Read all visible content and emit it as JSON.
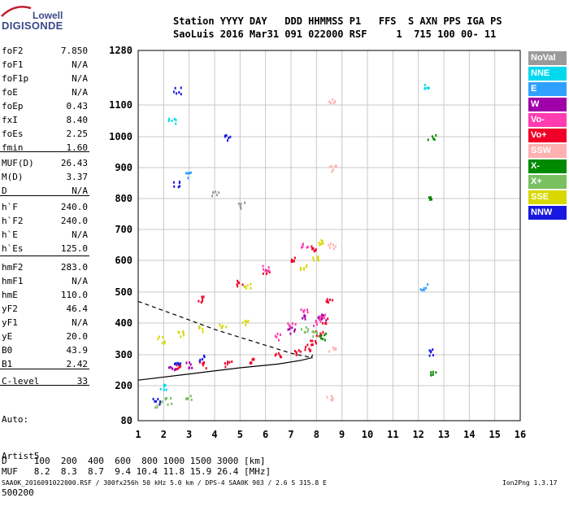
{
  "logo": {
    "line1": "Lowell",
    "line2": "DIGISONDE"
  },
  "header": {
    "line1": "Station YYYY DAY   DDD HHMMSS P1   FFS  S AXN PPS IGA PS",
    "line2": "SaoLuis 2016 Mar31 091 022000 RSF     1  715 100 00- 11"
  },
  "params": [
    {
      "label": "foF2",
      "value": "7.850"
    },
    {
      "label": "foF1",
      "value": "N/A"
    },
    {
      "label": "foF1p",
      "value": "N/A"
    },
    {
      "label": "foE",
      "value": "N/A"
    },
    {
      "label": "foEp",
      "value": "0.43"
    },
    {
      "label": "fxI",
      "value": "8.40"
    },
    {
      "label": "foEs",
      "value": "2.25"
    },
    {
      "label": "fmin",
      "value": "1.60"
    },
    {
      "label": "MUF(D)",
      "value": "26.43"
    },
    {
      "label": "M(D)",
      "value": "3.37"
    },
    {
      "label": "D",
      "value": "N/A"
    },
    {
      "label": "h`F",
      "value": "240.0"
    },
    {
      "label": "h`F2",
      "value": "240.0"
    },
    {
      "label": "h`E",
      "value": "N/A"
    },
    {
      "label": "h`Es",
      "value": "125.0"
    },
    {
      "label": "hmF2",
      "value": "283.0"
    },
    {
      "label": "hmF1",
      "value": "N/A"
    },
    {
      "label": "hmE",
      "value": "110.0"
    },
    {
      "label": "yF2",
      "value": "46.4"
    },
    {
      "label": "yF1",
      "value": "N/A"
    },
    {
      "label": "yE",
      "value": "20.0"
    },
    {
      "label": "B0",
      "value": "43.9"
    },
    {
      "label": "B1",
      "value": "2.42"
    },
    {
      "label": "C-level",
      "value": "33"
    }
  ],
  "auto": {
    "line1": "Auto:",
    "line2": "Artist5",
    "line3": "500200"
  },
  "legend": [
    {
      "label": "NoVal",
      "color": "#9a9a9a"
    },
    {
      "label": "NNE",
      "color": "#00d8ee"
    },
    {
      "label": "E",
      "color": "#30a0ff"
    },
    {
      "label": "W",
      "color": "#a000a8"
    },
    {
      "label": "Vo-",
      "color": "#ff3cb0"
    },
    {
      "label": "Vo+",
      "color": "#f00028"
    },
    {
      "label": "SSW",
      "color": "#ffb0b0"
    },
    {
      "label": "X-",
      "color": "#008a00"
    },
    {
      "label": "X+",
      "color": "#78c060"
    },
    {
      "label": "SSE",
      "color": "#d8d800"
    },
    {
      "label": "NNW",
      "color": "#1818e0"
    }
  ],
  "bottom": {
    "line1": "D     100  200  400  600  800 1000 1500 3000 [km]",
    "line2": "MUF   8.2  8.3  8.7  9.4 10.4 11.8 15.9 26.4 [MHz]"
  },
  "footer": {
    "left": "SAA0K_2016091022000.RSF / 300fx256h 50 kHz 5.0 km / DPS-4 SAA0K 903 / 2.6 S 315.8 E",
    "right": "Ion2Png 1.3.17"
  },
  "chart_data": {
    "type": "scatter",
    "title": "",
    "xlabel": "",
    "ylabel": "",
    "xlim": [
      1,
      16
    ],
    "ylim": [
      80,
      1280
    ],
    "x_ticks": [
      "1",
      "2",
      "3",
      "4",
      "5",
      "6",
      "7",
      "8",
      "9",
      "10",
      "11",
      "12",
      "13",
      "14",
      "15",
      "16"
    ],
    "y_ticks": [
      "80",
      "200",
      "300",
      "400",
      "500",
      "600",
      "700",
      "800",
      "900",
      "1000",
      "1100",
      "1280"
    ],
    "y_tick_values": [
      80,
      200,
      300,
      400,
      500,
      600,
      700,
      800,
      900,
      1000,
      1100,
      1280
    ],
    "grid": true,
    "series": [
      {
        "name": "Vo+",
        "color": "#f00028",
        "points": [
          [
            2.6,
            265
          ],
          [
            3.5,
            270
          ],
          [
            4.5,
            275
          ],
          [
            5.5,
            285
          ],
          [
            6.5,
            300
          ],
          [
            7.2,
            310
          ],
          [
            7.6,
            325
          ],
          [
            7.9,
            345
          ],
          [
            8.1,
            370
          ],
          [
            8.3,
            410
          ],
          [
            8.5,
            470
          ],
          [
            3.5,
            480
          ],
          [
            5.0,
            530
          ],
          [
            6.0,
            570
          ],
          [
            7.0,
            610
          ],
          [
            7.8,
            640
          ]
        ]
      },
      {
        "name": "Vo-",
        "color": "#ff3cb0",
        "points": [
          [
            6.5,
            360
          ],
          [
            7.0,
            400
          ],
          [
            7.5,
            440
          ],
          [
            8.0,
            400
          ],
          [
            8.2,
            420
          ],
          [
            6.0,
            580
          ],
          [
            7.5,
            650
          ]
        ]
      },
      {
        "name": "W",
        "color": "#a000a8",
        "points": [
          [
            2.3,
            260
          ],
          [
            3.0,
            270
          ],
          [
            7.0,
            380
          ],
          [
            7.5,
            420
          ],
          [
            8.2,
            420
          ]
        ]
      },
      {
        "name": "SSE",
        "color": "#d8d800",
        "points": [
          [
            1.9,
            350
          ],
          [
            2.7,
            370
          ],
          [
            3.5,
            385
          ],
          [
            4.3,
            395
          ],
          [
            5.2,
            405
          ],
          [
            5.3,
            520
          ],
          [
            7.5,
            580
          ],
          [
            7.9,
            610
          ],
          [
            8.2,
            660
          ]
        ]
      },
      {
        "name": "X+",
        "color": "#78c060",
        "points": [
          [
            1.8,
            140
          ],
          [
            2.2,
            150
          ],
          [
            3.0,
            160
          ],
          [
            7.5,
            380
          ],
          [
            7.9,
            370
          ]
        ]
      },
      {
        "name": "X-",
        "color": "#008a00",
        "points": [
          [
            8.2,
            360
          ],
          [
            12.5,
            1000
          ],
          [
            12.5,
            800
          ],
          [
            12.6,
            240
          ]
        ]
      },
      {
        "name": "NNW",
        "color": "#1818e0",
        "points": [
          [
            1.7,
            150
          ],
          [
            2.5,
            280
          ],
          [
            2.5,
            1150
          ],
          [
            2.5,
            850
          ],
          [
            3.5,
            290
          ],
          [
            4.5,
            1000
          ],
          [
            12.5,
            310
          ]
        ]
      },
      {
        "name": "SSW",
        "color": "#ffb0b0",
        "points": [
          [
            8.6,
            900
          ],
          [
            8.6,
            1120
          ],
          [
            8.6,
            650
          ],
          [
            8.5,
            160
          ],
          [
            8.6,
            320
          ]
        ]
      },
      {
        "name": "NNE",
        "color": "#00d8ee",
        "points": [
          [
            2.0,
            200
          ],
          [
            2.3,
            1050
          ],
          [
            12.3,
            1160
          ]
        ]
      },
      {
        "name": "E",
        "color": "#30a0ff",
        "points": [
          [
            3.0,
            880
          ],
          [
            12.2,
            520
          ]
        ]
      },
      {
        "name": "NoVal",
        "color": "#9a9a9a",
        "points": [
          [
            4.0,
            820
          ],
          [
            5.0,
            780
          ]
        ]
      }
    ],
    "profile_solid": [
      [
        1.0,
        218
      ],
      [
        3.0,
        238
      ],
      [
        5.0,
        258
      ],
      [
        6.5,
        270
      ],
      [
        7.4,
        282
      ],
      [
        7.8,
        290
      ],
      [
        7.85,
        300
      ]
    ],
    "profile_dashed": [
      [
        1.0,
        470
      ],
      [
        2.0,
        440
      ],
      [
        3.0,
        410
      ],
      [
        4.0,
        380
      ],
      [
        5.0,
        355
      ],
      [
        6.0,
        330
      ],
      [
        7.0,
        305
      ],
      [
        7.85,
        290
      ]
    ]
  }
}
